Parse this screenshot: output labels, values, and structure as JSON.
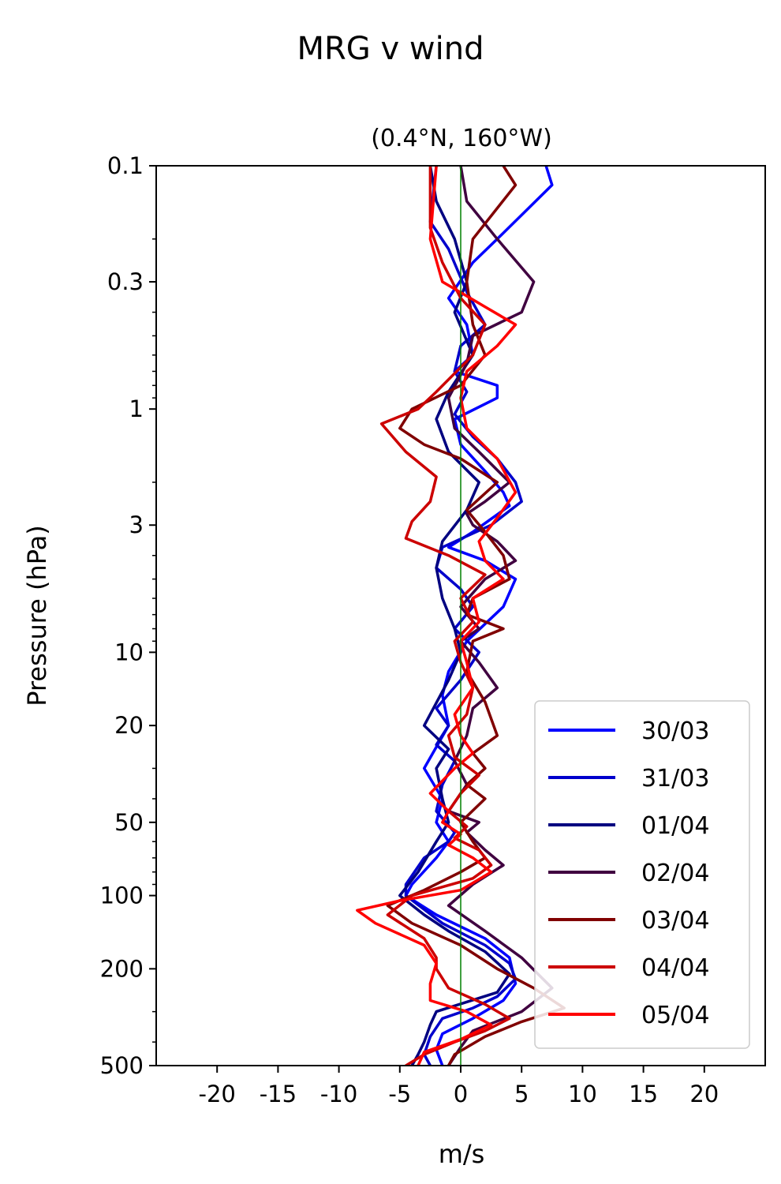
{
  "chart_data": {
    "type": "line",
    "suptitle": "MRG v wind",
    "title": "(0.4°N, 160°W)",
    "xlabel": "m/s",
    "ylabel": "Pressure (hPa)",
    "xlim": [
      -25,
      25
    ],
    "ylim": [
      500,
      0.1
    ],
    "yscale": "log",
    "x_ticks": [
      -20,
      -15,
      -10,
      -5,
      0,
      5,
      10,
      15,
      20
    ],
    "x_tick_labels": [
      "-20",
      "-15",
      "-10",
      "-5",
      "0",
      "5",
      "10",
      "15",
      "20"
    ],
    "y_ticks": [
      0.1,
      0.3,
      1,
      3,
      10,
      20,
      50,
      100,
      200,
      500
    ],
    "y_tick_labels": [
      "0.1",
      "0.3",
      "1",
      "3",
      "10",
      "20",
      "50",
      "100",
      "200",
      "500"
    ],
    "zero_line": {
      "x": 0,
      "color": "#008000"
    },
    "legend_position": "lower-right",
    "series": [
      {
        "name": "30/03",
        "color": "#0000ff",
        "points": [
          [
            7,
            0.1
          ],
          [
            7.5,
            0.12
          ],
          [
            3,
            0.2
          ],
          [
            1,
            0.25
          ],
          [
            -1,
            0.35
          ],
          [
            0.5,
            0.45
          ],
          [
            1,
            0.6
          ],
          [
            -0.5,
            0.7
          ],
          [
            3,
            0.8
          ],
          [
            3,
            0.9
          ],
          [
            -0.5,
            1.1
          ],
          [
            0,
            1.4
          ],
          [
            2,
            1.8
          ],
          [
            3.5,
            2.2
          ],
          [
            4,
            2.5
          ],
          [
            1,
            3.2
          ],
          [
            -1,
            3.7
          ],
          [
            2,
            4.2
          ],
          [
            4.5,
            5
          ],
          [
            3.5,
            6.5
          ],
          [
            0.5,
            9
          ],
          [
            -1,
            12
          ],
          [
            -1.5,
            15
          ],
          [
            -1,
            20
          ],
          [
            -3,
            30
          ],
          [
            -1.5,
            40
          ],
          [
            -2,
            50
          ],
          [
            -1,
            60
          ],
          [
            -2,
            70
          ],
          [
            -4,
            90
          ],
          [
            -4.5,
            100
          ],
          [
            -2,
            120
          ],
          [
            2,
            150
          ],
          [
            4,
            180
          ],
          [
            4.5,
            230
          ],
          [
            3.5,
            270
          ],
          [
            1,
            320
          ],
          [
            -1.5,
            370
          ],
          [
            -2,
            430
          ],
          [
            -1.5,
            500
          ]
        ]
      },
      {
        "name": "31/03",
        "color": "#0000cc",
        "points": [
          [
            -2,
            0.1
          ],
          [
            -2.5,
            0.17
          ],
          [
            -1,
            0.22
          ],
          [
            0.5,
            0.33
          ],
          [
            2,
            0.45
          ],
          [
            0,
            0.55
          ],
          [
            -0.5,
            0.7
          ],
          [
            0.5,
            0.85
          ],
          [
            -0.5,
            1.05
          ],
          [
            1,
            1.3
          ],
          [
            3,
            1.6
          ],
          [
            4.5,
            2
          ],
          [
            5,
            2.4
          ],
          [
            2.5,
            3
          ],
          [
            -1.5,
            3.7
          ],
          [
            -2,
            4.5
          ],
          [
            0,
            5.5
          ],
          [
            1,
            6.5
          ],
          [
            -0.5,
            8
          ],
          [
            1.5,
            10
          ],
          [
            0,
            13
          ],
          [
            -2,
            17
          ],
          [
            -1,
            20
          ],
          [
            -2,
            24
          ],
          [
            -0.5,
            28
          ],
          [
            -1.5,
            35
          ],
          [
            -2,
            45
          ],
          [
            -0.5,
            55
          ],
          [
            -1,
            60
          ],
          [
            -3,
            70
          ],
          [
            -4.5,
            90
          ],
          [
            -4.5,
            100
          ],
          [
            -1.5,
            130
          ],
          [
            2,
            160
          ],
          [
            4,
            190
          ],
          [
            4.5,
            220
          ],
          [
            3,
            260
          ],
          [
            1,
            290
          ],
          [
            -1.5,
            320
          ],
          [
            -2.5,
            380
          ],
          [
            -3,
            450
          ],
          [
            -2.5,
            500
          ]
        ]
      },
      {
        "name": "01/04",
        "color": "#000080",
        "points": [
          [
            -2.5,
            0.1
          ],
          [
            -2,
            0.14
          ],
          [
            -0.5,
            0.2
          ],
          [
            0.5,
            0.3
          ],
          [
            -0.5,
            0.4
          ],
          [
            1,
            0.6
          ],
          [
            -1,
            0.85
          ],
          [
            -2,
            1.1
          ],
          [
            -1,
            1.5
          ],
          [
            1.5,
            2
          ],
          [
            0.5,
            2.6
          ],
          [
            -1.5,
            3.5
          ],
          [
            -2,
            4.5
          ],
          [
            -1.5,
            6
          ],
          [
            -0.5,
            8
          ],
          [
            0,
            10
          ],
          [
            -1,
            13
          ],
          [
            -3,
            20
          ],
          [
            -1,
            25
          ],
          [
            -2,
            30
          ],
          [
            -1.5,
            40
          ],
          [
            -1,
            50
          ],
          [
            -2,
            60
          ],
          [
            -3.5,
            80
          ],
          [
            -5,
            100
          ],
          [
            -3,
            120
          ],
          [
            -1,
            140
          ],
          [
            2,
            170
          ],
          [
            4,
            210
          ],
          [
            3,
            250
          ],
          [
            -2,
            300
          ],
          [
            -2.5,
            340
          ],
          [
            -3,
            400
          ],
          [
            -3.5,
            450
          ],
          [
            -4,
            500
          ]
        ]
      },
      {
        "name": "02/04",
        "color": "#400040",
        "points": [
          [
            0,
            0.1
          ],
          [
            0.5,
            0.14
          ],
          [
            3,
            0.2
          ],
          [
            6,
            0.3
          ],
          [
            5,
            0.4
          ],
          [
            1,
            0.5
          ],
          [
            0.5,
            0.65
          ],
          [
            -1,
            0.9
          ],
          [
            -0.5,
            1.2
          ],
          [
            1.5,
            1.5
          ],
          [
            4,
            2
          ],
          [
            2,
            2.4
          ],
          [
            0.5,
            2.7
          ],
          [
            1,
            3
          ],
          [
            3,
            3.5
          ],
          [
            4.5,
            4.2
          ],
          [
            2,
            5
          ],
          [
            0,
            6.5
          ],
          [
            1.5,
            8
          ],
          [
            0,
            9
          ],
          [
            1.5,
            11
          ],
          [
            3,
            14
          ],
          [
            1,
            17
          ],
          [
            0.5,
            22
          ],
          [
            -0.5,
            28
          ],
          [
            0.5,
            35
          ],
          [
            -1,
            45
          ],
          [
            1.5,
            50
          ],
          [
            0.5,
            55
          ],
          [
            2,
            65
          ],
          [
            3.5,
            75
          ],
          [
            1,
            90
          ],
          [
            -1,
            110
          ],
          [
            2,
            140
          ],
          [
            5,
            180
          ],
          [
            7.5,
            240
          ],
          [
            5,
            300
          ],
          [
            1,
            360
          ],
          [
            0,
            420
          ],
          [
            -1,
            500
          ]
        ]
      },
      {
        "name": "03/04",
        "color": "#800000",
        "points": [
          [
            3.5,
            0.1
          ],
          [
            4.5,
            0.12
          ],
          [
            1,
            0.2
          ],
          [
            0.5,
            0.3
          ],
          [
            1,
            0.45
          ],
          [
            2,
            0.6
          ],
          [
            0,
            0.8
          ],
          [
            -4,
            1
          ],
          [
            -5,
            1.2
          ],
          [
            -3,
            1.4
          ],
          [
            0,
            1.6
          ],
          [
            3,
            2
          ],
          [
            0.5,
            2.6
          ],
          [
            2,
            3.2
          ],
          [
            3.5,
            4
          ],
          [
            4,
            5
          ],
          [
            1,
            6
          ],
          [
            0.5,
            7
          ],
          [
            3.5,
            8
          ],
          [
            1,
            9
          ],
          [
            0.5,
            12
          ],
          [
            2,
            16
          ],
          [
            3,
            22
          ],
          [
            1,
            26
          ],
          [
            2,
            30
          ],
          [
            0.5,
            35
          ],
          [
            2,
            40
          ],
          [
            0,
            50
          ],
          [
            1,
            60
          ],
          [
            2,
            70
          ],
          [
            0,
            80
          ],
          [
            -3,
            95
          ],
          [
            -6,
            110
          ],
          [
            -4,
            130
          ],
          [
            0,
            160
          ],
          [
            3,
            200
          ],
          [
            6,
            240
          ],
          [
            8.5,
            290
          ],
          [
            5,
            330
          ],
          [
            2,
            380
          ],
          [
            -0.5,
            450
          ],
          [
            -1,
            500
          ]
        ]
      },
      {
        "name": "04/04",
        "color": "#cc0000",
        "points": [
          [
            -2.5,
            0.1
          ],
          [
            -2.5,
            0.18
          ],
          [
            -1.5,
            0.25
          ],
          [
            0,
            0.35
          ],
          [
            2,
            0.45
          ],
          [
            1,
            0.6
          ],
          [
            -2,
            0.85
          ],
          [
            -3.5,
            1
          ],
          [
            -6.5,
            1.15
          ],
          [
            -4.5,
            1.5
          ],
          [
            -2,
            1.9
          ],
          [
            -2.5,
            2.4
          ],
          [
            -4,
            2.9
          ],
          [
            -4.5,
            3.4
          ],
          [
            -1,
            4
          ],
          [
            2,
            4.8
          ],
          [
            0,
            6
          ],
          [
            1,
            7.5
          ],
          [
            -0.5,
            9
          ],
          [
            0,
            11
          ],
          [
            1,
            14
          ],
          [
            0.5,
            18
          ],
          [
            -1,
            22
          ],
          [
            -0.5,
            27
          ],
          [
            1.5,
            32
          ],
          [
            0,
            38
          ],
          [
            -1,
            45
          ],
          [
            0.5,
            52
          ],
          [
            -0.5,
            58
          ],
          [
            1.5,
            65
          ],
          [
            2.5,
            75
          ],
          [
            1,
            85
          ],
          [
            -4,
            100
          ],
          [
            -6,
            120
          ],
          [
            -3,
            150
          ],
          [
            -2,
            180
          ],
          [
            -2,
            200
          ],
          [
            -1,
            240
          ],
          [
            2,
            280
          ],
          [
            4,
            320
          ],
          [
            2,
            360
          ],
          [
            -0.5,
            400
          ],
          [
            -3,
            450
          ],
          [
            -4.5,
            500
          ]
        ]
      },
      {
        "name": "05/04",
        "color": "#ff0000",
        "points": [
          [
            -2,
            0.1
          ],
          [
            -2.5,
            0.2
          ],
          [
            -1.5,
            0.3
          ],
          [
            2,
            0.38
          ],
          [
            4.5,
            0.45
          ],
          [
            3,
            0.55
          ],
          [
            0.5,
            0.7
          ],
          [
            0,
            0.9
          ],
          [
            0.5,
            1.2
          ],
          [
            3,
            1.6
          ],
          [
            4.5,
            2.2
          ],
          [
            3,
            2.8
          ],
          [
            1.5,
            3.5
          ],
          [
            2,
            4.2
          ],
          [
            3.5,
            5
          ],
          [
            1,
            6
          ],
          [
            1.5,
            7.5
          ],
          [
            0,
            9
          ],
          [
            0.5,
            11
          ],
          [
            1,
            14
          ],
          [
            -0.5,
            18
          ],
          [
            0,
            22
          ],
          [
            1,
            26
          ],
          [
            -0.5,
            30
          ],
          [
            -2.5,
            38
          ],
          [
            -1,
            45
          ],
          [
            -1.5,
            50
          ],
          [
            0,
            56
          ],
          [
            -1,
            62
          ],
          [
            1,
            70
          ],
          [
            2.5,
            80
          ],
          [
            0,
            95
          ],
          [
            -5,
            105
          ],
          [
            -8.5,
            115
          ],
          [
            -7,
            130
          ],
          [
            -3,
            160
          ],
          [
            -2,
            190
          ],
          [
            -2.5,
            230
          ],
          [
            -2.5,
            270
          ],
          [
            0.5,
            300
          ],
          [
            2.5,
            340
          ],
          [
            0,
            390
          ],
          [
            -3,
            440
          ],
          [
            -3.5,
            500
          ]
        ]
      }
    ]
  }
}
